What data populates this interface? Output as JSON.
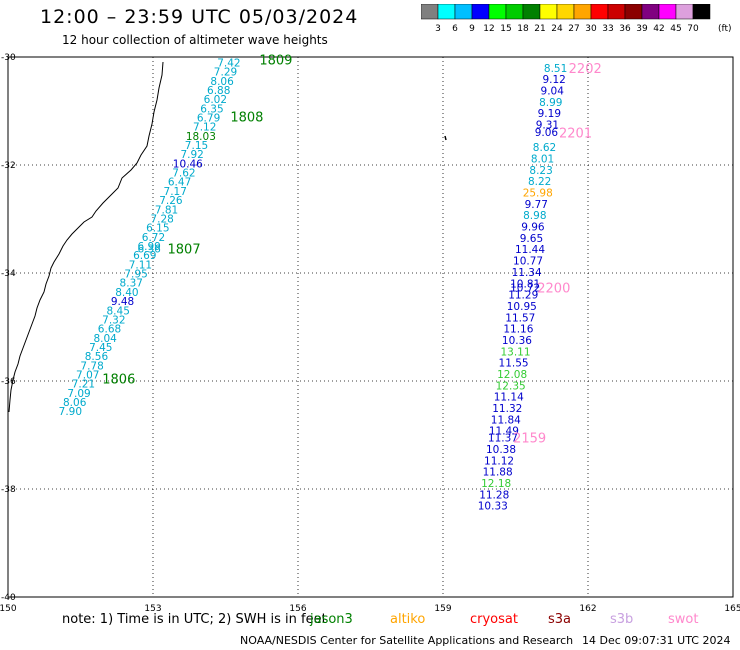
{
  "title": "12:00 – 23:59 UTC 05/03/2024",
  "subtitle": "12 hour collection of altimeter wave heights",
  "colorbar": {
    "ticks": [
      "3",
      "6",
      "9",
      "12",
      "15",
      "18",
      "21",
      "24",
      "27",
      "30",
      "33",
      "36",
      "39",
      "42",
      "45",
      "70"
    ],
    "unit": "(ft)",
    "colors": [
      "#808080",
      "#00ffff",
      "#00bfff",
      "#0000ff",
      "#00ff00",
      "#00cc00",
      "#008000",
      "#ffff00",
      "#ffd700",
      "#ffa500",
      "#ff0000",
      "#cc0000",
      "#8b0000",
      "#800080",
      "#ff00ff",
      "#dda0dd",
      "#000000"
    ]
  },
  "chart_data": {
    "type": "map",
    "lon_range": [
      150,
      165
    ],
    "lat_range": [
      -40,
      -30
    ],
    "lon_ticks": [
      "150",
      "153",
      "156",
      "159",
      "162",
      "165"
    ],
    "lat_ticks": [
      "-30",
      "-32",
      "-34",
      "-36",
      "-38",
      "-40"
    ],
    "grid": "dotted",
    "west_track_color": "#00aacc",
    "east_track_color": "#0000cc",
    "west_track": [
      {
        "v": "7.42",
        "lat": -30.1,
        "lon": 154.57
      },
      {
        "v": "7.29",
        "lat": -30.27,
        "lon": 154.5
      },
      {
        "v": "8.06",
        "lat": -30.44,
        "lon": 154.43
      },
      {
        "v": "6.88",
        "lat": -30.61,
        "lon": 154.36
      },
      {
        "v": "6.02",
        "lat": -30.78,
        "lon": 154.29
      },
      {
        "v": "6.35",
        "lat": -30.95,
        "lon": 154.22
      },
      {
        "v": "6.79",
        "lat": -31.12,
        "lon": 154.15
      },
      {
        "v": "7.12",
        "lat": -31.29,
        "lon": 154.07
      },
      {
        "v": "18.03",
        "lat": -31.46,
        "lon": 153.99,
        "c": "#008000"
      },
      {
        "v": "7.15",
        "lat": -31.63,
        "lon": 153.9
      },
      {
        "v": "7.92",
        "lat": -31.8,
        "lon": 153.81
      },
      {
        "v": "10.46",
        "lat": -31.97,
        "lon": 153.72,
        "c": "#0000cc"
      },
      {
        "v": "7.62",
        "lat": -32.14,
        "lon": 153.64
      },
      {
        "v": "6.47",
        "lat": -32.31,
        "lon": 153.55
      },
      {
        "v": "7.17",
        "lat": -32.48,
        "lon": 153.46
      },
      {
        "v": "7.26",
        "lat": -32.65,
        "lon": 153.37
      },
      {
        "v": "7.81",
        "lat": -32.82,
        "lon": 153.28
      },
      {
        "v": "7.28",
        "lat": -32.99,
        "lon": 153.19
      },
      {
        "v": "6.15",
        "lat": -33.16,
        "lon": 153.1
      },
      {
        "v": "6.72",
        "lat": -33.33,
        "lon": 153.01
      },
      {
        "v": "6.99",
        "lat": -33.5,
        "lon": 152.92
      },
      {
        "v": "6.36",
        "lat": -33.55,
        "lon": 152.92
      },
      {
        "v": "6.69",
        "lat": -33.67,
        "lon": 152.83
      },
      {
        "v": "7.11",
        "lat": -33.84,
        "lon": 152.74
      },
      {
        "v": "7.95",
        "lat": -34.01,
        "lon": 152.65
      },
      {
        "v": "8.37",
        "lat": -34.18,
        "lon": 152.55
      },
      {
        "v": "8.40",
        "lat": -34.35,
        "lon": 152.46
      },
      {
        "v": "9.48",
        "lat": -34.52,
        "lon": 152.37,
        "c": "#0000cc"
      },
      {
        "v": "8.45",
        "lat": -34.69,
        "lon": 152.28
      },
      {
        "v": "7.32",
        "lat": -34.86,
        "lon": 152.19
      },
      {
        "v": "6.68",
        "lat": -35.03,
        "lon": 152.1
      },
      {
        "v": "8.04",
        "lat": -35.2,
        "lon": 152.01
      },
      {
        "v": "7.45",
        "lat": -35.37,
        "lon": 151.92
      },
      {
        "v": "8.56",
        "lat": -35.54,
        "lon": 151.83
      },
      {
        "v": "7.78",
        "lat": -35.71,
        "lon": 151.74
      },
      {
        "v": "7.07",
        "lat": -35.88,
        "lon": 151.65
      },
      {
        "v": "7.21",
        "lat": -36.05,
        "lon": 151.56
      },
      {
        "v": "7.09",
        "lat": -36.22,
        "lon": 151.47
      },
      {
        "v": "8.06",
        "lat": -36.39,
        "lon": 151.38
      },
      {
        "v": "7.90",
        "lat": -36.56,
        "lon": 151.29
      }
    ],
    "east_track": [
      {
        "v": "8.51",
        "lat": -30.2,
        "lon": 161.33,
        "c": "#00aacc"
      },
      {
        "v": "9.12",
        "lat": -30.41,
        "lon": 161.3
      },
      {
        "v": "9.04",
        "lat": -30.62,
        "lon": 161.26
      },
      {
        "v": "8.99",
        "lat": -30.83,
        "lon": 161.23,
        "c": "#00aacc"
      },
      {
        "v": "9.19",
        "lat": -31.04,
        "lon": 161.2
      },
      {
        "v": "9.31",
        "lat": -31.25,
        "lon": 161.16
      },
      {
        "v": "9.06",
        "lat": -31.39,
        "lon": 161.14
      },
      {
        "v": "8.62",
        "lat": -31.67,
        "lon": 161.1,
        "c": "#00aacc"
      },
      {
        "v": "8.01",
        "lat": -31.88,
        "lon": 161.06,
        "c": "#00aacc"
      },
      {
        "v": "8.23",
        "lat": -32.09,
        "lon": 161.03,
        "c": "#00aacc"
      },
      {
        "v": "8.22",
        "lat": -32.3,
        "lon": 161.0,
        "c": "#00aacc"
      },
      {
        "v": "25.98",
        "lat": -32.51,
        "lon": 160.96,
        "c": "#ffa500"
      },
      {
        "v": "9.77",
        "lat": -32.72,
        "lon": 160.93
      },
      {
        "v": "8.98",
        "lat": -32.93,
        "lon": 160.9,
        "c": "#00aacc"
      },
      {
        "v": "9.96",
        "lat": -33.14,
        "lon": 160.86
      },
      {
        "v": "9.65",
        "lat": -33.35,
        "lon": 160.83
      },
      {
        "v": "11.44",
        "lat": -33.56,
        "lon": 160.8
      },
      {
        "v": "10.77",
        "lat": -33.77,
        "lon": 160.76
      },
      {
        "v": "11.34",
        "lat": -33.98,
        "lon": 160.73
      },
      {
        "v": "10.81",
        "lat": -34.19,
        "lon": 160.7
      },
      {
        "v": "10.72",
        "lat": -34.27,
        "lon": 160.7
      },
      {
        "v": "11.29",
        "lat": -34.4,
        "lon": 160.66
      },
      {
        "v": "10.95",
        "lat": -34.61,
        "lon": 160.63
      },
      {
        "v": "11.57",
        "lat": -34.82,
        "lon": 160.6
      },
      {
        "v": "11.16",
        "lat": -35.03,
        "lon": 160.56
      },
      {
        "v": "10.36",
        "lat": -35.24,
        "lon": 160.53
      },
      {
        "v": "13.11",
        "lat": -35.45,
        "lon": 160.5,
        "c": "#33cc33"
      },
      {
        "v": "11.55",
        "lat": -35.66,
        "lon": 160.46
      },
      {
        "v": "12.08",
        "lat": -35.87,
        "lon": 160.43,
        "c": "#33cc33"
      },
      {
        "v": "12.35",
        "lat": -36.08,
        "lon": 160.4,
        "c": "#33cc33"
      },
      {
        "v": "11.14",
        "lat": -36.29,
        "lon": 160.36
      },
      {
        "v": "11.32",
        "lat": -36.5,
        "lon": 160.33
      },
      {
        "v": "11.84",
        "lat": -36.71,
        "lon": 160.3
      },
      {
        "v": "11.49",
        "lat": -36.92,
        "lon": 160.26
      },
      {
        "v": "11.37",
        "lat": -37.05,
        "lon": 160.24
      },
      {
        "v": "10.38",
        "lat": -37.26,
        "lon": 160.2
      },
      {
        "v": "11.12",
        "lat": -37.47,
        "lon": 160.16
      },
      {
        "v": "11.88",
        "lat": -37.68,
        "lon": 160.13
      },
      {
        "v": "12.18",
        "lat": -37.89,
        "lon": 160.1,
        "c": "#33cc33"
      },
      {
        "v": "11.28",
        "lat": -38.1,
        "lon": 160.06
      },
      {
        "v": "10.33",
        "lat": -38.31,
        "lon": 160.03
      }
    ],
    "time_labels": [
      {
        "t": "1809",
        "lat": -30.05,
        "lon": 155.2,
        "c": "#008000"
      },
      {
        "t": "1808",
        "lat": -31.1,
        "lon": 154.6,
        "c": "#008000"
      },
      {
        "t": "1807",
        "lat": -33.55,
        "lon": 153.3,
        "c": "#008000"
      },
      {
        "t": "1806",
        "lat": -35.95,
        "lon": 151.95,
        "c": "#008000"
      },
      {
        "t": "2202",
        "lat": -30.2,
        "lon": 161.6,
        "c": "#ff88cc"
      },
      {
        "t": "2201",
        "lat": -31.4,
        "lon": 161.4,
        "c": "#ff88cc"
      },
      {
        "t": "2200",
        "lat": -34.27,
        "lon": 160.95,
        "c": "#ff88cc"
      },
      {
        "t": "2159",
        "lat": -37.05,
        "lon": 160.45,
        "c": "#ff88cc"
      }
    ]
  },
  "note": {
    "text": "note:  1) Time is in UTC;  2) SWH is in feet",
    "missions": [
      {
        "name": "jason3",
        "color": "#008000"
      },
      {
        "name": "altiko",
        "color": "#ffa500"
      },
      {
        "name": "cryosat",
        "color": "#ff0000"
      },
      {
        "name": "s3a",
        "color": "#8b0000"
      },
      {
        "name": "s3b",
        "color": "#c8a0e0"
      },
      {
        "name": "swot",
        "color": "#ff88cc"
      }
    ]
  },
  "credit": "NOAA/NESDIS Center for Satellite Applications and Research",
  "stamp": "14 Dec 09:07:31 UTC 2024"
}
